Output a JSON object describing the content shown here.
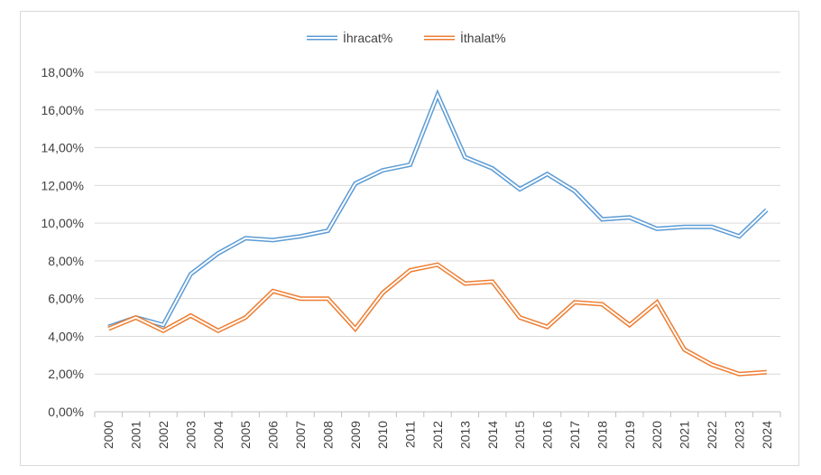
{
  "chart_data": {
    "type": "line",
    "title": "",
    "xlabel": "",
    "ylabel": "",
    "x": [
      "2000",
      "2001",
      "2002",
      "2003",
      "2004",
      "2005",
      "2006",
      "2007",
      "2008",
      "2009",
      "2010",
      "2011",
      "2012",
      "2013",
      "2014",
      "2015",
      "2016",
      "2017",
      "2018",
      "2019",
      "2020",
      "2021",
      "2022",
      "2023",
      "2024"
    ],
    "ylim": [
      0,
      18
    ],
    "y_ticks": [
      "0,00%",
      "2,00%",
      "4,00%",
      "6,00%",
      "8,00%",
      "10,00%",
      "12,00%",
      "14,00%",
      "16,00%",
      "18,00%"
    ],
    "y_tick_values": [
      0,
      2,
      4,
      6,
      8,
      10,
      12,
      14,
      16,
      18
    ],
    "grid": "horizontal",
    "legend_position": "top",
    "series": [
      {
        "name": "İhracat%",
        "color": "#5b9bd5",
        "values": [
          4.5,
          5.0,
          4.6,
          7.3,
          8.4,
          9.2,
          9.1,
          9.3,
          9.6,
          12.1,
          12.8,
          13.1,
          16.8,
          13.5,
          12.9,
          11.8,
          12.6,
          11.7,
          10.2,
          10.3,
          9.7,
          9.8,
          9.8,
          9.3,
          10.7
        ]
      },
      {
        "name": "İthalat%",
        "color": "#ed7d31",
        "values": [
          4.4,
          5.0,
          4.3,
          5.1,
          4.3,
          5.0,
          6.4,
          6.0,
          6.0,
          4.4,
          6.3,
          7.5,
          7.8,
          6.8,
          6.9,
          5.0,
          4.5,
          5.8,
          5.7,
          4.6,
          5.8,
          3.3,
          2.5,
          2.0,
          2.1
        ]
      }
    ]
  }
}
